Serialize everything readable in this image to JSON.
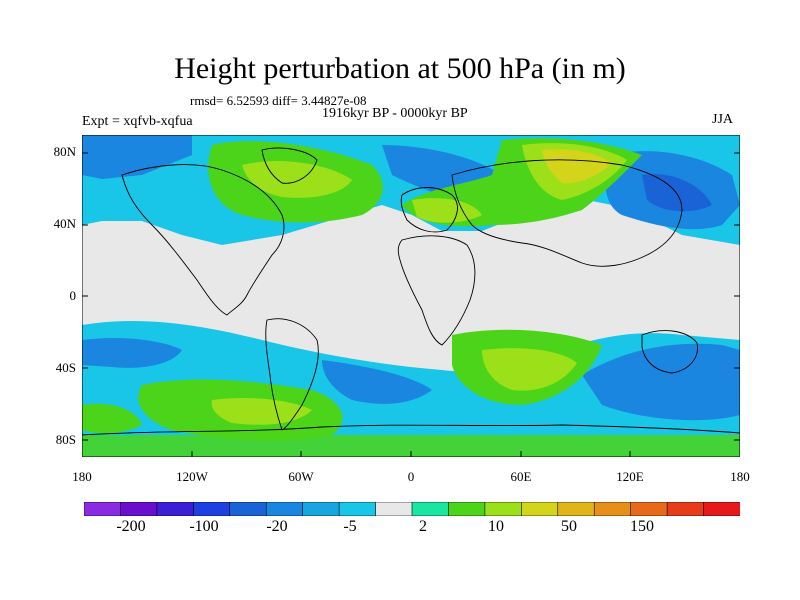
{
  "title": "Height perturbation at 500 hPa (in m)",
  "stats": "rmsd= 6.52593 diff= 3.44827e-08",
  "period": "1916kyr BP - 0000kyr BP",
  "experiment": "Expt = xqfvb-xqfua",
  "season": "JJA",
  "lat_ticks": [
    "80N",
    "40N",
    "0",
    "40S",
    "80S"
  ],
  "lon_ticks": [
    "180",
    "120W",
    "60W",
    "0",
    "60E",
    "120E",
    "180"
  ],
  "colorbar": {
    "colors": [
      "#8a2be2",
      "#6a0dcc",
      "#3a1fd6",
      "#1f40e0",
      "#1a63d6",
      "#1a86e0",
      "#19a5e0",
      "#19c6e8",
      "#e8e8e8",
      "#19e6a0",
      "#4cd41a",
      "#9ce01a",
      "#d4d41a",
      "#e0b41a",
      "#e6901a",
      "#e66a1a",
      "#e63c1a",
      "#e61a1a"
    ],
    "labels": [
      "-200",
      "-100",
      "-20",
      "-5",
      "2",
      "10",
      "50",
      "150"
    ]
  },
  "legend_colors": {
    "neutral": "#e8e8e8",
    "ocean_outline": "#000000"
  }
}
